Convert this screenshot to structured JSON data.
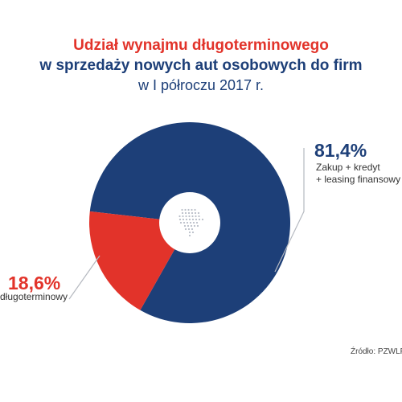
{
  "header": {
    "title_line1": "Udział wynajmu długoterminowego",
    "title_line2": "w sprzedaży nowych aut osobowych do firm",
    "title_line3": "w I półroczu 2017 r."
  },
  "chart_data": {
    "type": "pie",
    "title": "Udział wynajmu długoterminowego w sprzedaży nowych aut osobowych do firm w I półroczu 2017 r.",
    "categories": [
      "Zakup + kredyt + leasing finansowy",
      "długoterminowy"
    ],
    "values": [
      81.4,
      18.6
    ],
    "value_labels": [
      "81,4%",
      "18,6%"
    ],
    "label_lines": [
      [
        "Zakup + kredyt",
        "+ leasing finansowy"
      ],
      [
        "długoterminowy"
      ]
    ],
    "colors": [
      "#1d3f78",
      "#e2332a"
    ],
    "center_color": "#ffffff",
    "grid": false,
    "legend": "none"
  },
  "footer": {
    "source": "Źródło: PZWLP"
  }
}
